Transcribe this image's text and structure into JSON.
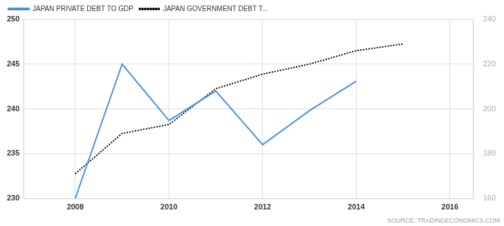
{
  "chart_data": {
    "type": "line",
    "source": "SOURCE: TRADINGECONOMICS.COM",
    "x": [
      2008,
      2009,
      2010,
      2011,
      2012,
      2013,
      2014,
      2015
    ],
    "series": [
      {
        "name": "JAPAN PRIVATE DEBT TO GDP",
        "color": "#4a90e2",
        "line_style": "solid",
        "marker": "none",
        "values": [
          230,
          245,
          238.7,
          242,
          236,
          239.8,
          243.1,
          null
        ]
      },
      {
        "name": "JAPAN GOVERNMENT DEBT T...",
        "color": "#000000",
        "line_style": "dotted",
        "marker": "none",
        "axis": "y2",
        "values": [
          171,
          189,
          193,
          209,
          215.5,
          220,
          226,
          229
        ]
      }
    ],
    "xlim": [
      2006.9,
      2016.5
    ],
    "xticks": [
      2008,
      2010,
      2012,
      2014,
      2016
    ],
    "ylim": [
      230,
      250
    ],
    "yticks": [
      230,
      235,
      240,
      245,
      250
    ],
    "y2lim": [
      160,
      240
    ],
    "y2ticks": [
      160,
      180,
      200,
      220,
      240
    ],
    "grid": true,
    "legend": "top-left"
  }
}
